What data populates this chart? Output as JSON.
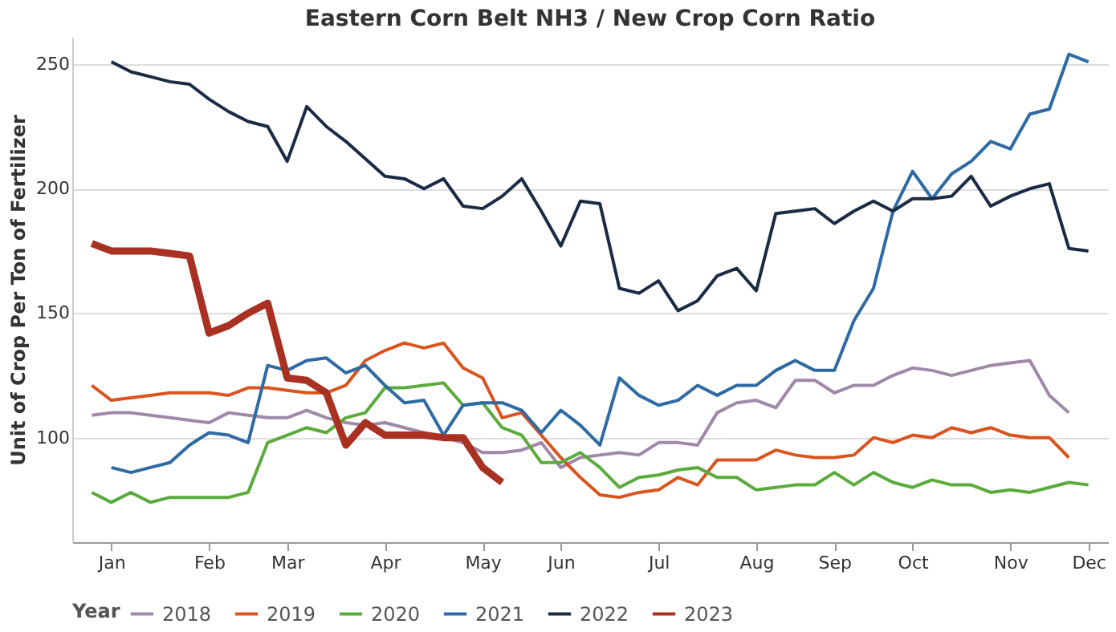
{
  "chart_data": {
    "type": "line",
    "title": "Eastern Corn Belt NH3 / New Crop Corn Ratio",
    "ylabel": "Unit of Crop Per Ton of Fertilizer",
    "legend_title": "Year",
    "legend": "bottom",
    "grid": "y",
    "categories": [
      null,
      "Jan",
      null,
      null,
      null,
      null,
      "Feb",
      null,
      null,
      null,
      "Mar",
      null,
      null,
      null,
      null,
      "Apr",
      null,
      null,
      null,
      null,
      "May",
      null,
      null,
      null,
      "Jun",
      null,
      null,
      null,
      null,
      "Jul",
      null,
      null,
      null,
      null,
      "Aug",
      null,
      null,
      null,
      "Sep",
      null,
      null,
      null,
      "Oct",
      null,
      null,
      null,
      null,
      "Nov",
      null,
      null,
      null,
      "Dec"
    ],
    "ylim": [
      58,
      261
    ],
    "yticks": [
      100,
      150,
      200,
      250
    ],
    "series": [
      {
        "name": "2018",
        "color": "#a088a8",
        "values": [
          109,
          110,
          110,
          109,
          108,
          107,
          106,
          110,
          109,
          108,
          108,
          111,
          108,
          106,
          105,
          106,
          104,
          102,
          100,
          98,
          94,
          94,
          95,
          98,
          88,
          92,
          93,
          94,
          93,
          98,
          98,
          97,
          110,
          114,
          115,
          112,
          123,
          123,
          118,
          121,
          121,
          125,
          128,
          127,
          125,
          127,
          129,
          130,
          131,
          117,
          110,
          null
        ]
      },
      {
        "name": "2019",
        "color": "#d9541e",
        "values": [
          121,
          115,
          116,
          117,
          118,
          118,
          118,
          117,
          120,
          120,
          119,
          118,
          118,
          121,
          131,
          135,
          138,
          136,
          138,
          128,
          124,
          108,
          110,
          101,
          92,
          84,
          77,
          76,
          78,
          79,
          84,
          81,
          91,
          91,
          91,
          95,
          93,
          92,
          92,
          93,
          100,
          98,
          101,
          100,
          104,
          102,
          104,
          101,
          100,
          100,
          92,
          null
        ]
      },
      {
        "name": "2020",
        "color": "#5aab3c",
        "values": [
          78,
          74,
          78,
          74,
          76,
          76,
          76,
          76,
          78,
          98,
          101,
          104,
          102,
          108,
          110,
          120,
          120,
          121,
          122,
          113,
          114,
          104,
          101,
          90,
          90,
          94,
          88,
          80,
          84,
          85,
          87,
          88,
          84,
          84,
          79,
          80,
          81,
          81,
          86,
          81,
          86,
          82,
          80,
          83,
          81,
          81,
          78,
          79,
          78,
          80,
          82,
          81
        ]
      },
      {
        "name": "2021",
        "color": "#2e6aa3",
        "values": [
          null,
          88,
          86,
          88,
          90,
          97,
          102,
          101,
          98,
          129,
          127,
          131,
          132,
          126,
          129,
          121,
          114,
          115,
          101,
          113,
          114,
          114,
          111,
          102,
          111,
          105,
          97,
          124,
          117,
          113,
          115,
          121,
          117,
          121,
          121,
          127,
          131,
          127,
          127,
          147,
          160,
          191,
          207,
          196,
          206,
          211,
          219,
          216,
          230,
          232,
          254,
          251
        ]
      },
      {
        "name": "2022",
        "color": "#1b2b45",
        "values": [
          null,
          251,
          247,
          245,
          243,
          242,
          236,
          231,
          227,
          225,
          211,
          233,
          225,
          219,
          212,
          205,
          204,
          200,
          204,
          193,
          192,
          197,
          204,
          191,
          177,
          195,
          194,
          160,
          158,
          163,
          151,
          155,
          165,
          168,
          159,
          190,
          191,
          192,
          186,
          191,
          195,
          191,
          196,
          196,
          197,
          205,
          193,
          197,
          200,
          202,
          176,
          175
        ]
      },
      {
        "name": "2023",
        "color": "#a83121",
        "values": [
          178,
          175,
          175,
          175,
          174,
          173,
          142,
          145,
          150,
          154,
          124,
          123,
          118,
          97,
          106,
          101,
          101,
          101,
          100,
          100,
          88,
          82,
          null,
          null,
          null,
          null,
          null,
          null,
          null,
          null,
          null,
          null,
          null,
          null,
          null,
          null,
          null,
          null,
          null,
          null,
          null,
          null,
          null,
          null,
          null,
          null,
          null,
          null,
          null,
          null,
          null,
          null
        ]
      }
    ]
  }
}
